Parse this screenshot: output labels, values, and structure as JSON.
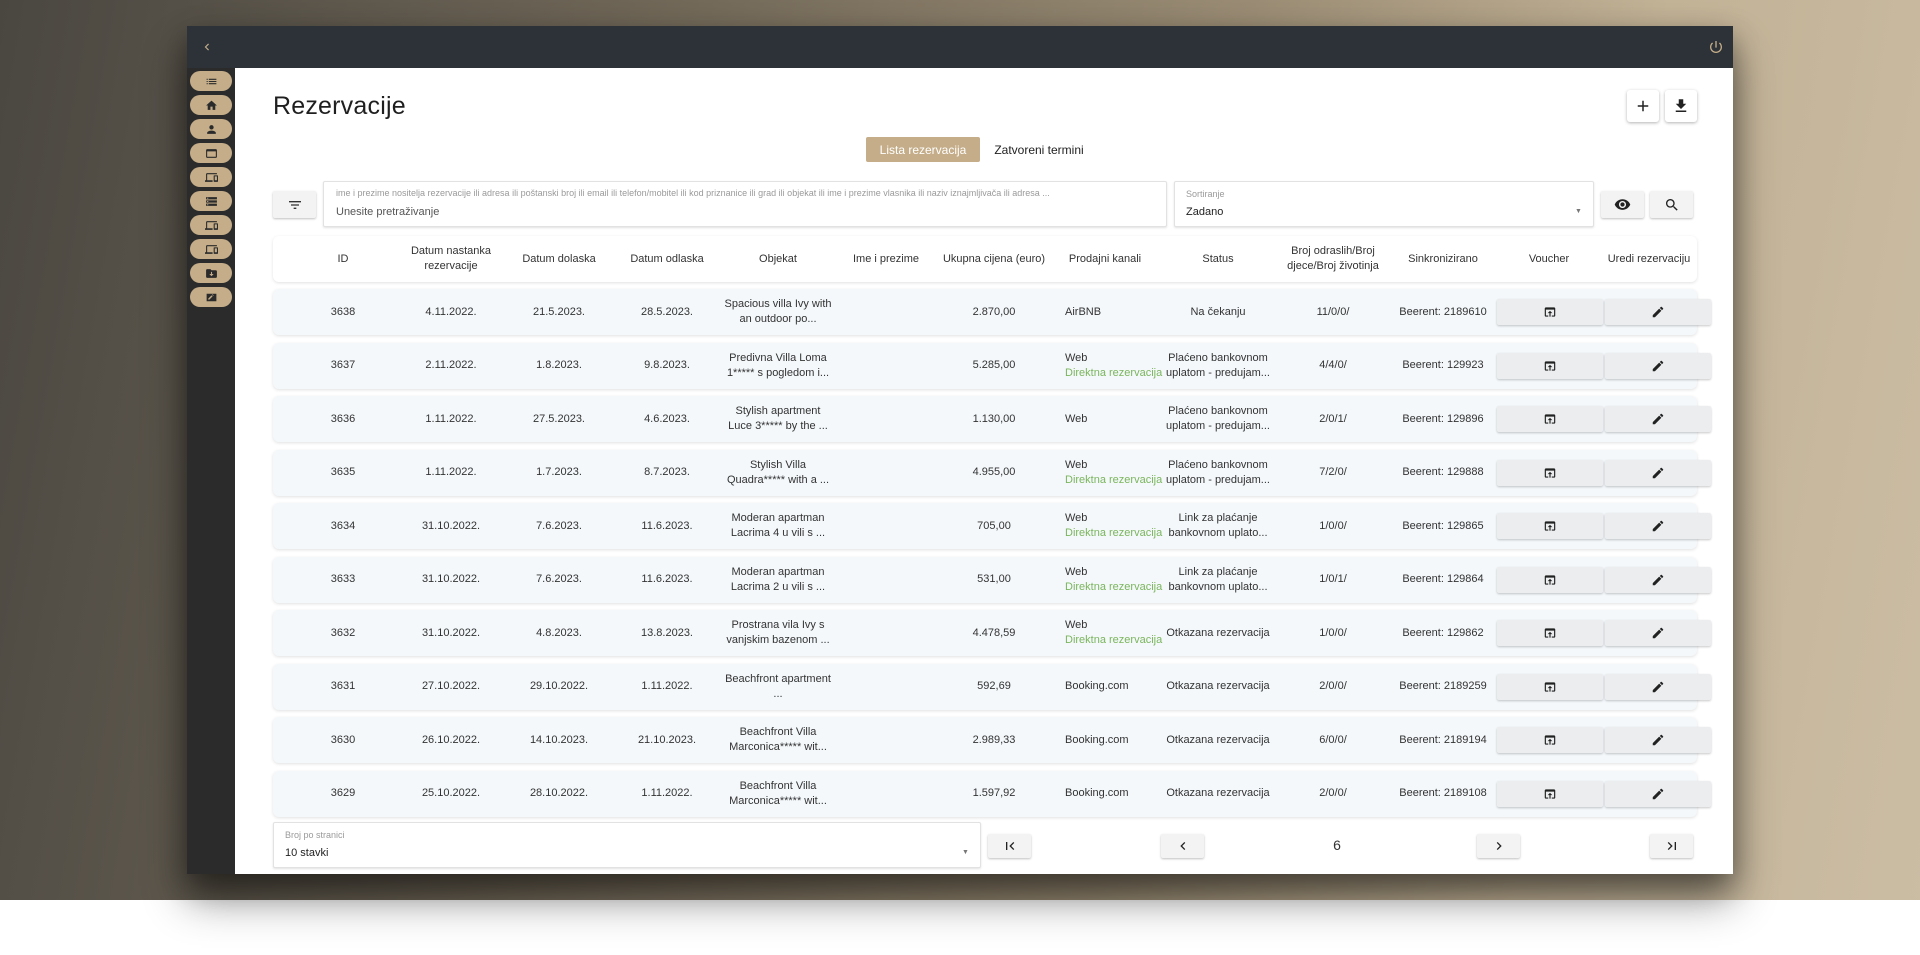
{
  "header": {
    "title": "Rezervacije",
    "add_label": "+",
    "download_label": "download"
  },
  "tabs": [
    {
      "label": "Lista rezervacija",
      "active": true
    },
    {
      "label": "Zatvoreni termini",
      "active": false
    }
  ],
  "search": {
    "label": "ime i prezime nositelja rezervacije ili adresa ili poštanski broj ili email ili telefon/mobitel ili kod priznanice ili grad ili objekat ili ime i prezime vlasnika ili naziv iznajmljivača ili adresa ...",
    "placeholder": "Unesite pretraživanje"
  },
  "sort": {
    "label": "Sortiranje",
    "value": "Zadano"
  },
  "columns": [
    "ID",
    "Datum nastanka rezervacije",
    "Datum dolaska",
    "Datum odlaska",
    "Objekat",
    "Ime i prezime",
    "Ukupna cijena (euro)",
    "Prodajni kanali",
    "Status",
    "Broj odraslih/Broj djece/Broj životinja",
    "Sinkronizirano",
    "Voucher",
    "Uredi rezervaciju"
  ],
  "rows": [
    {
      "id": "3638",
      "created": "4.11.2022.",
      "arrival": "21.5.2023.",
      "departure": "28.5.2023.",
      "object": "Spacious villa Ivy with an outdoor po...",
      "name": "",
      "price": "2.870,00",
      "channel1": "AirBNB",
      "channel2": "",
      "status": "Na čekanju",
      "guests": "11/0/0/",
      "sync": "Beerent: 2189610"
    },
    {
      "id": "3637",
      "created": "2.11.2022.",
      "arrival": "1.8.2023.",
      "departure": "9.8.2023.",
      "object": "Predivna Villa Loma 1***** s pogledom i...",
      "name": "",
      "price": "5.285,00",
      "channel1": "Web",
      "channel2": "Direktna rezervacija",
      "status": "Plaćeno bankovnom uplatom - predujam...",
      "guests": "4/4/0/",
      "sync": "Beerent: 129923"
    },
    {
      "id": "3636",
      "created": "1.11.2022.",
      "arrival": "27.5.2023.",
      "departure": "4.6.2023.",
      "object": "Stylish apartment Luce 3***** by the ...",
      "name": "",
      "price": "1.130,00",
      "channel1": "Web",
      "channel2": "",
      "status": "Plaćeno bankovnom uplatom - predujam...",
      "guests": "2/0/1/",
      "sync": "Beerent: 129896"
    },
    {
      "id": "3635",
      "created": "1.11.2022.",
      "arrival": "1.7.2023.",
      "departure": "8.7.2023.",
      "object": "Stylish Villa Quadra***** with a ...",
      "name": "",
      "price": "4.955,00",
      "channel1": "Web",
      "channel2": "Direktna rezervacija",
      "status": "Plaćeno bankovnom uplatom - predujam...",
      "guests": "7/2/0/",
      "sync": "Beerent: 129888"
    },
    {
      "id": "3634",
      "created": "31.10.2022.",
      "arrival": "7.6.2023.",
      "departure": "11.6.2023.",
      "object": "Moderan apartman Lacrima 4 u vili s ...",
      "name": "",
      "price": "705,00",
      "channel1": "Web",
      "channel2": "Direktna rezervacija",
      "status": "Link za plaćanje bankovnom uplato...",
      "guests": "1/0/0/",
      "sync": "Beerent: 129865"
    },
    {
      "id": "3633",
      "created": "31.10.2022.",
      "arrival": "7.6.2023.",
      "departure": "11.6.2023.",
      "object": "Moderan apartman Lacrima 2 u vili s ...",
      "name": "",
      "price": "531,00",
      "channel1": "Web",
      "channel2": "Direktna rezervacija",
      "status": "Link za plaćanje bankovnom uplato...",
      "guests": "1/0/1/",
      "sync": "Beerent: 129864"
    },
    {
      "id": "3632",
      "created": "31.10.2022.",
      "arrival": "4.8.2023.",
      "departure": "13.8.2023.",
      "object": "Prostrana vila Ivy s vanjskim bazenom ...",
      "name": "",
      "price": "4.478,59",
      "channel1": "Web",
      "channel2": "Direktna rezervacija",
      "status": "Otkazana rezervacija",
      "guests": "1/0/0/",
      "sync": "Beerent: 129862"
    },
    {
      "id": "3631",
      "created": "27.10.2022.",
      "arrival": "29.10.2022.",
      "departure": "1.11.2022.",
      "object": "Beachfront apartment ...",
      "name": "",
      "price": "592,69",
      "channel1": "Booking.com",
      "channel2": "",
      "status": "Otkazana rezervacija",
      "guests": "2/0/0/",
      "sync": "Beerent: 2189259"
    },
    {
      "id": "3630",
      "created": "26.10.2022.",
      "arrival": "14.10.2023.",
      "departure": "21.10.2023.",
      "object": "Beachfront Villa Marconica***** wit...",
      "name": "",
      "price": "2.989,33",
      "channel1": "Booking.com",
      "channel2": "",
      "status": "Otkazana rezervacija",
      "guests": "6/0/0/",
      "sync": "Beerent: 2189194"
    },
    {
      "id": "3629",
      "created": "25.10.2022.",
      "arrival": "28.10.2022.",
      "departure": "1.11.2022.",
      "object": "Beachfront Villa Marconica***** wit...",
      "name": "",
      "price": "1.597,92",
      "channel1": "Booking.com",
      "channel2": "",
      "status": "Otkazana rezervacija",
      "guests": "2/0/0/",
      "sync": "Beerent: 2189108"
    }
  ],
  "pagination": {
    "per_page_label": "Broj po stranici",
    "per_page_value": "10 stavki",
    "current_page": "6"
  },
  "sidebar_icons": [
    "list-icon",
    "home-icon",
    "person-icon",
    "calendar-icon",
    "devices-icon",
    "storage-icon",
    "devices-icon",
    "devices-icon",
    "archive-icon",
    "edit-note-icon"
  ],
  "colors": {
    "accent": "#c4ad88",
    "topbar": "#2d3238",
    "sidebar": "#2b2b2b",
    "channel_direct": "#7ab55c"
  }
}
